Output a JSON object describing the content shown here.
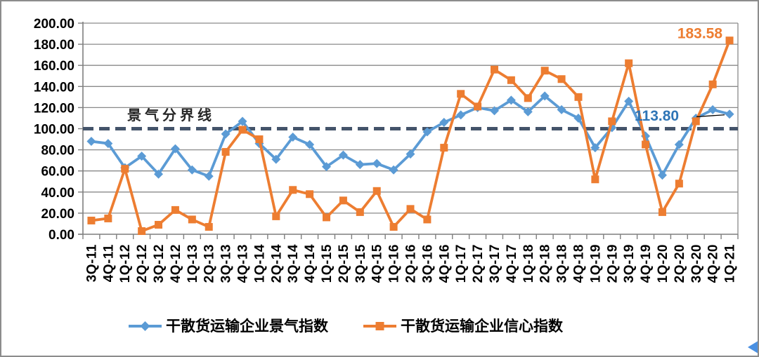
{
  "frame": {
    "background": "#ffffff",
    "border_color": "#8c8c8c"
  },
  "chart_data": {
    "type": "line",
    "title": "",
    "xlabel": "",
    "ylabel": "",
    "grid": true,
    "legend_position": "bottom",
    "y_axis": {
      "min": 0,
      "max": 200,
      "step": 20,
      "tick_labels": [
        "0.00",
        "20.00",
        "40.00",
        "60.00",
        "80.00",
        "100.00",
        "120.00",
        "140.00",
        "160.00",
        "180.00",
        "200.00"
      ]
    },
    "categories": [
      "3Q-11",
      "4Q-11",
      "1Q-12",
      "2Q-12",
      "3Q-12",
      "4Q-12",
      "1Q-13",
      "2Q-13",
      "3Q-13",
      "4Q-13",
      "1Q-14",
      "2Q-14",
      "3Q-14",
      "4Q-14",
      "1Q-15",
      "2Q-15",
      "3Q-15",
      "4Q-15",
      "1Q-16",
      "2Q-16",
      "3Q-16",
      "4Q-16",
      "1Q-17",
      "2Q-17",
      "3Q-17",
      "4Q-17",
      "1Q-18",
      "2Q-18",
      "3Q-18",
      "4Q-18",
      "1Q-19",
      "2Q-19",
      "3Q-19",
      "4Q-19",
      "1Q-20",
      "2Q-20",
      "3Q-20",
      "4Q-20",
      "1Q-21"
    ],
    "series": [
      {
        "name": "干散货运输企业景气指数",
        "color": "#5B9BD5",
        "marker": "diamond",
        "values": [
          88,
          86,
          63,
          74,
          57,
          81,
          61,
          55,
          95,
          107,
          86,
          71,
          92,
          85,
          64,
          75,
          66,
          67,
          61,
          76,
          97,
          106,
          113,
          120,
          117,
          127,
          116,
          131,
          118,
          110,
          82,
          101,
          126,
          93,
          56,
          85,
          110,
          118,
          113.8
        ]
      },
      {
        "name": "干散货运输企业信心指数",
        "color": "#ED7D31",
        "marker": "square",
        "values": [
          13,
          15,
          62,
          3,
          9,
          23,
          14,
          7,
          78,
          99,
          90,
          17,
          42,
          38,
          16,
          32,
          21,
          41,
          7,
          24,
          14,
          82,
          133,
          121,
          156,
          146,
          129,
          155,
          147,
          130,
          52,
          107,
          162,
          85,
          21,
          48,
          107,
          142,
          183.58
        ]
      }
    ],
    "threshold": {
      "value": 100,
      "label": "景气分界线",
      "color": "#44546A",
      "label_color": "#262626"
    },
    "annotations": [
      {
        "text": "183.58",
        "series": 1,
        "point_index": 38,
        "color": "#ED7D31"
      },
      {
        "text": "113.80",
        "series": 0,
        "point_index": 38,
        "color": "#2E75B6",
        "leader_line": true
      }
    ],
    "colors": {
      "gridline": "#8a8a8a",
      "axis": "#7f7f7f",
      "tick_text": "#000000",
      "corner_mark": "#4a90e2"
    }
  }
}
